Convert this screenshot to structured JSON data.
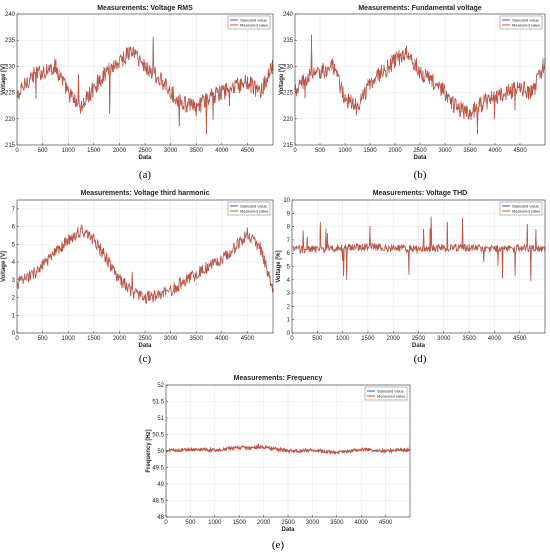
{
  "chart_data": [
    {
      "panel": "(a)",
      "type": "line",
      "title": "Measurements: Voltage RMS",
      "xlabel": "Data",
      "ylabel": "Voltage [V]",
      "xlim": [
        0,
        5000
      ],
      "ylim": [
        215,
        240
      ],
      "xticks": [
        0,
        500,
        1000,
        1500,
        2000,
        2500,
        3000,
        3500,
        4000,
        4500
      ],
      "yticks": [
        215,
        220,
        225,
        230,
        235,
        240
      ],
      "grid": true,
      "legend": "top-right",
      "series": [
        {
          "name": "Standard value",
          "color": "#3d52b5",
          "x": [
            0,
            250,
            500,
            750,
            1000,
            1250,
            1500,
            1750,
            2000,
            2250,
            2500,
            2750,
            3000,
            3250,
            3500,
            3750,
            4000,
            4250,
            4500,
            4750,
            5000
          ],
          "values": [
            224,
            228,
            229,
            230,
            225,
            222,
            226,
            229,
            231,
            233,
            230,
            228,
            225,
            223,
            222,
            224,
            225,
            226,
            227,
            225,
            230
          ]
        },
        {
          "name": "Measured value",
          "color": "#e0531f",
          "x": [
            0,
            250,
            500,
            750,
            1000,
            1250,
            1500,
            1750,
            2000,
            2250,
            2500,
            2750,
            3000,
            3250,
            3500,
            3750,
            4000,
            4250,
            4500,
            4750,
            5000
          ],
          "values": [
            224,
            228,
            229,
            230,
            225,
            222,
            226,
            229,
            231,
            233,
            230,
            228,
            225,
            223,
            222,
            224,
            225,
            226,
            227,
            225,
            230
          ]
        }
      ]
    },
    {
      "panel": "(b)",
      "type": "line",
      "title": "Measurements: Fundamental voltage",
      "xlabel": "Data",
      "ylabel": "Voltage [V]",
      "xlim": [
        0,
        5000
      ],
      "ylim": [
        215,
        240
      ],
      "xticks": [
        0,
        500,
        1000,
        1500,
        2000,
        2500,
        3000,
        3500,
        4000,
        4500
      ],
      "yticks": [
        215,
        220,
        225,
        230,
        235,
        240
      ],
      "grid": true,
      "legend": "top-right",
      "series": [
        {
          "name": "Standard value",
          "color": "#3d52b5",
          "x": [
            0,
            250,
            500,
            750,
            1000,
            1250,
            1500,
            1750,
            2000,
            2250,
            2500,
            2750,
            3000,
            3250,
            3500,
            3750,
            4000,
            4250,
            4500,
            4750,
            5000
          ],
          "values": [
            225,
            228,
            229,
            230,
            224,
            222,
            227,
            229,
            231,
            233,
            229,
            227,
            225,
            222,
            221,
            223,
            224,
            225,
            226,
            225,
            231
          ]
        },
        {
          "name": "Measured value",
          "color": "#e0531f",
          "x": [
            0,
            250,
            500,
            750,
            1000,
            1250,
            1500,
            1750,
            2000,
            2250,
            2500,
            2750,
            3000,
            3250,
            3500,
            3750,
            4000,
            4250,
            4500,
            4750,
            5000
          ],
          "values": [
            225,
            228,
            229,
            230,
            224,
            222,
            227,
            229,
            231,
            233,
            229,
            227,
            225,
            222,
            221,
            223,
            224,
            225,
            226,
            225,
            231
          ]
        }
      ]
    },
    {
      "panel": "(c)",
      "type": "line",
      "title": "Measurements: Voltage third harmonic",
      "xlabel": "Data",
      "ylabel": "Voltage [V]",
      "xlim": [
        0,
        5000
      ],
      "ylim": [
        0,
        7.5
      ],
      "xticks": [
        0,
        500,
        1000,
        1500,
        2000,
        2500,
        3000,
        3500,
        4000,
        4500
      ],
      "yticks": [
        0,
        1,
        2,
        3,
        4,
        5,
        6,
        7
      ],
      "grid": true,
      "legend": "top-right",
      "series": [
        {
          "name": "Standard value",
          "color": "#3d52b5",
          "x": [
            0,
            250,
            500,
            750,
            1000,
            1250,
            1500,
            1750,
            2000,
            2250,
            2500,
            2750,
            3000,
            3250,
            3500,
            3750,
            4000,
            4250,
            4500,
            4750,
            5000
          ],
          "values": [
            2.8,
            3.2,
            3.8,
            4.5,
            5.2,
            5.8,
            5.3,
            4.2,
            3.0,
            2.3,
            2.0,
            2.1,
            2.4,
            2.9,
            3.3,
            3.8,
            4.2,
            4.8,
            5.6,
            4.8,
            2.5
          ]
        },
        {
          "name": "Measured value",
          "color": "#e0531f",
          "x": [
            0,
            250,
            500,
            750,
            1000,
            1250,
            1500,
            1750,
            2000,
            2250,
            2500,
            2750,
            3000,
            3250,
            3500,
            3750,
            4000,
            4250,
            4500,
            4750,
            5000
          ],
          "values": [
            2.8,
            3.2,
            3.8,
            4.5,
            5.2,
            5.8,
            5.3,
            4.2,
            3.0,
            2.3,
            2.0,
            2.1,
            2.4,
            2.9,
            3.3,
            3.8,
            4.2,
            4.8,
            5.6,
            4.8,
            2.5
          ]
        }
      ]
    },
    {
      "panel": "(d)",
      "type": "line",
      "title": "Measurements: Voltage THD",
      "xlabel": "Data",
      "ylabel": "Voltage [%]",
      "xlim": [
        0,
        5000
      ],
      "ylim": [
        0,
        10
      ],
      "xticks": [
        0,
        500,
        1000,
        1500,
        2000,
        2500,
        3000,
        3500,
        4000,
        4500
      ],
      "yticks": [
        0,
        1,
        2,
        3,
        4,
        5,
        6,
        7,
        8,
        9,
        10
      ],
      "grid": true,
      "legend": "top-right",
      "series": [
        {
          "name": "Standard value",
          "color": "#3d52b5",
          "x": [
            0,
            500,
            1000,
            1500,
            2000,
            2500,
            3000,
            3500,
            4000,
            4500,
            5000
          ],
          "values": [
            6.3,
            6.3,
            6.4,
            6.5,
            6.4,
            6.3,
            6.4,
            6.4,
            6.3,
            6.4,
            6.3
          ]
        },
        {
          "name": "Measured value",
          "color": "#e0531f",
          "x": [
            0,
            500,
            1000,
            1500,
            2000,
            2500,
            3000,
            3500,
            4000,
            4500,
            5000
          ],
          "values": [
            6.3,
            6.3,
            6.4,
            6.5,
            6.4,
            6.3,
            6.4,
            6.4,
            6.3,
            6.4,
            6.3
          ]
        }
      ]
    },
    {
      "panel": "(e)",
      "type": "line",
      "title": "Measurements: Frequency",
      "xlabel": "Data",
      "ylabel": "Frequency [Hz]",
      "xlim": [
        0,
        5000
      ],
      "ylim": [
        48,
        52
      ],
      "xticks": [
        0,
        500,
        1000,
        1500,
        2000,
        2500,
        3000,
        3500,
        4000,
        4500
      ],
      "yticks": [
        48,
        48.5,
        49,
        49.5,
        50,
        50.5,
        51,
        51.5,
        52
      ],
      "grid": true,
      "legend": "top-right",
      "series": [
        {
          "name": "Standard value",
          "color": "#3d52b5",
          "x": [
            0,
            500,
            1000,
            1500,
            2000,
            2500,
            3000,
            3500,
            4000,
            4500,
            5000
          ],
          "values": [
            50.0,
            50.05,
            50.02,
            50.1,
            50.12,
            50.0,
            50.02,
            49.95,
            50.05,
            50.0,
            50.05
          ]
        },
        {
          "name": "Measured value",
          "color": "#e0531f",
          "x": [
            0,
            500,
            1000,
            1500,
            2000,
            2500,
            3000,
            3500,
            4000,
            4500,
            5000
          ],
          "values": [
            50.0,
            50.05,
            50.02,
            50.1,
            50.12,
            50.0,
            50.02,
            49.95,
            50.05,
            50.0,
            50.05
          ]
        }
      ]
    }
  ]
}
